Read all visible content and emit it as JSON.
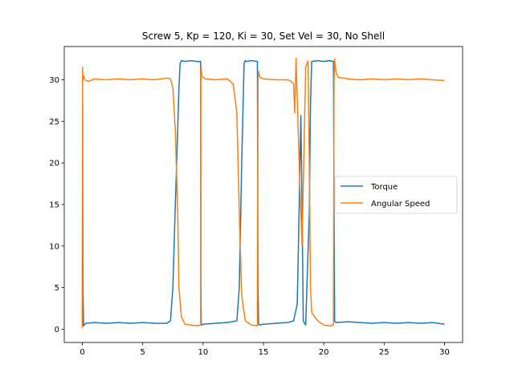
{
  "chart_data": {
    "type": "line",
    "title": "Screw 5, Kp = 120, Ki = 30, Set Vel = 30, No Shell",
    "xlabel": "",
    "ylabel": "",
    "xlim": [
      -1.5,
      31.5
    ],
    "ylim": [
      -1.6,
      34.0
    ],
    "xticks": [
      0,
      5,
      10,
      15,
      20,
      25,
      30
    ],
    "yticks": [
      0,
      5,
      10,
      15,
      20,
      25,
      30
    ],
    "xtick_labels": [
      "0",
      "5",
      "10",
      "15",
      "20",
      "25",
      "30"
    ],
    "ytick_labels": [
      "0",
      "5",
      "10",
      "15",
      "20",
      "25",
      "30"
    ],
    "grid": false,
    "legend_position": "center-right",
    "series": [
      {
        "name": "Torque",
        "color": "#1f77b4",
        "x": [
          0,
          0.02,
          0.05,
          0.1,
          0.2,
          0.3,
          1,
          2,
          3,
          4,
          5,
          6,
          7,
          7.3,
          7.5,
          7.7,
          7.9,
          8.0,
          8.1,
          8.2,
          8.5,
          9,
          9.5,
          9.8,
          9.82,
          9.85,
          9.9,
          10,
          11,
          12,
          12.8,
          13.0,
          13.2,
          13.4,
          13.5,
          13.6,
          14,
          14.5,
          14.55,
          14.6,
          14.7,
          15,
          16,
          17,
          17.5,
          17.8,
          17.9,
          18.0,
          18.1,
          18.2,
          18.3,
          18.5,
          18.8,
          18.9,
          19.0,
          19.5,
          20,
          20.5,
          20.8,
          20.85,
          20.9,
          21,
          22,
          23,
          24,
          25,
          26,
          27,
          28,
          29,
          30
        ],
        "y": [
          0.5,
          27.0,
          5.0,
          0.4,
          0.6,
          0.7,
          0.8,
          0.7,
          0.8,
          0.7,
          0.8,
          0.7,
          0.7,
          1.0,
          5.0,
          15.0,
          24.0,
          29.0,
          32.0,
          32.3,
          32.2,
          32.3,
          32.2,
          32.2,
          5.0,
          0.6,
          0.5,
          0.6,
          0.7,
          0.8,
          1.0,
          5.0,
          20.0,
          32.0,
          32.3,
          32.2,
          32.3,
          32.2,
          5.0,
          0.6,
          0.5,
          0.6,
          0.7,
          0.8,
          1.0,
          3.0,
          10.0,
          18.0,
          25.7,
          15.0,
          1.0,
          0.5,
          14.0,
          27.0,
          32.2,
          32.3,
          32.2,
          32.3,
          32.2,
          15.0,
          1.0,
          0.8,
          0.9,
          0.8,
          0.7,
          0.8,
          0.7,
          0.8,
          0.7,
          0.8,
          0.6
        ]
      },
      {
        "name": "Angular Speed",
        "color": "#ff7f0e",
        "x": [
          0,
          0.02,
          0.05,
          0.1,
          0.2,
          0.5,
          1,
          2,
          3,
          4,
          5,
          6,
          7,
          7.3,
          7.5,
          7.7,
          7.9,
          8.0,
          8.2,
          8.5,
          9,
          9.5,
          9.8,
          9.82,
          9.85,
          9.9,
          10,
          10.2,
          11,
          12,
          12.5,
          12.8,
          13.0,
          13.2,
          13.5,
          14,
          14.5,
          14.55,
          14.6,
          14.7,
          15,
          16,
          17,
          17.3,
          17.5,
          17.6,
          17.7,
          17.8,
          18.0,
          18.2,
          18.5,
          18.7,
          18.8,
          18.9,
          19.0,
          19.5,
          20,
          20.5,
          20.8,
          20.85,
          20.9,
          21,
          21.2,
          22,
          23,
          24,
          25,
          26,
          27,
          28,
          29,
          30
        ],
        "y": [
          0.1,
          31.5,
          30.0,
          30.5,
          30.0,
          29.8,
          30.1,
          30.0,
          30.1,
          30.0,
          30.1,
          30.0,
          30.2,
          30.1,
          29.0,
          24.0,
          14.0,
          5.0,
          1.5,
          0.6,
          0.5,
          0.4,
          0.5,
          30.5,
          31.5,
          30.5,
          30.3,
          30.1,
          30.0,
          30.1,
          29.5,
          26.0,
          14.0,
          4.0,
          1.0,
          0.5,
          0.4,
          30.0,
          31.0,
          30.3,
          30.1,
          30.0,
          30.0,
          29.8,
          29.5,
          26.0,
          32.6,
          28.0,
          18.0,
          10.0,
          31.5,
          32.3,
          20.0,
          5.0,
          2.0,
          1.0,
          0.5,
          0.4,
          0.5,
          30.0,
          32.5,
          31.0,
          30.3,
          30.1,
          30.0,
          30.1,
          30.0,
          30.1,
          30.0,
          30.1,
          30.0,
          29.9
        ]
      }
    ]
  }
}
